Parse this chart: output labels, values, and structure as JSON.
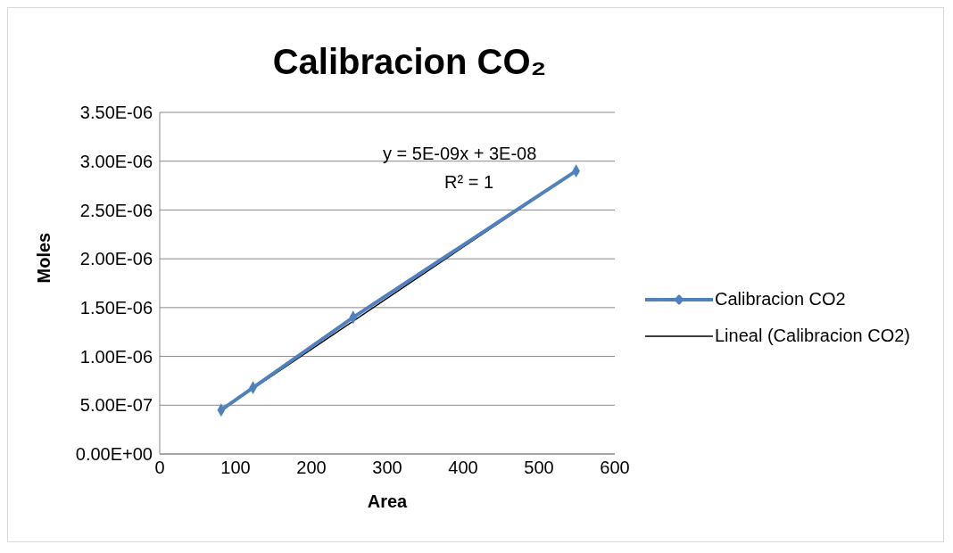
{
  "chart_data": {
    "type": "line",
    "title": "Calibracion CO₂",
    "xlabel": "Area",
    "ylabel": "Moles",
    "series": [
      {
        "name": "Calibracion CO2",
        "color": "#4f81bd",
        "x": [
          81,
          123,
          255,
          549
        ],
        "values": [
          4.5e-07,
          6.8e-07,
          1.4e-06,
          2.9e-06
        ],
        "marker": "diamond",
        "line_style": "solid"
      },
      {
        "name": "Lineal (Calibracion CO2)",
        "color": "#000000",
        "x": [
          81,
          549
        ],
        "values": [
          4.5e-07,
          2.9e-06
        ],
        "marker": "none",
        "line_style": "solid"
      }
    ],
    "xlim": [
      0,
      600
    ],
    "xticks": [
      0,
      100,
      200,
      300,
      400,
      500,
      600
    ],
    "ylim": [
      0,
      3.5e-06
    ],
    "yticks": [
      {
        "value": 0,
        "label": "0.00E+00"
      },
      {
        "value": 5e-07,
        "label": "5.00E-07"
      },
      {
        "value": 1e-06,
        "label": "1.00E-06"
      },
      {
        "value": 1.5e-06,
        "label": "1.50E-06"
      },
      {
        "value": 2e-06,
        "label": "2.00E-06"
      },
      {
        "value": 2.5e-06,
        "label": "2.50E-06"
      },
      {
        "value": 3e-06,
        "label": "3.00E-06"
      },
      {
        "value": 3.5e-06,
        "label": "3.50E-06"
      }
    ],
    "grid": "y",
    "legend": "right",
    "annotations": [
      "y = 5E-09x + 3E-08",
      "R² = 1"
    ]
  }
}
